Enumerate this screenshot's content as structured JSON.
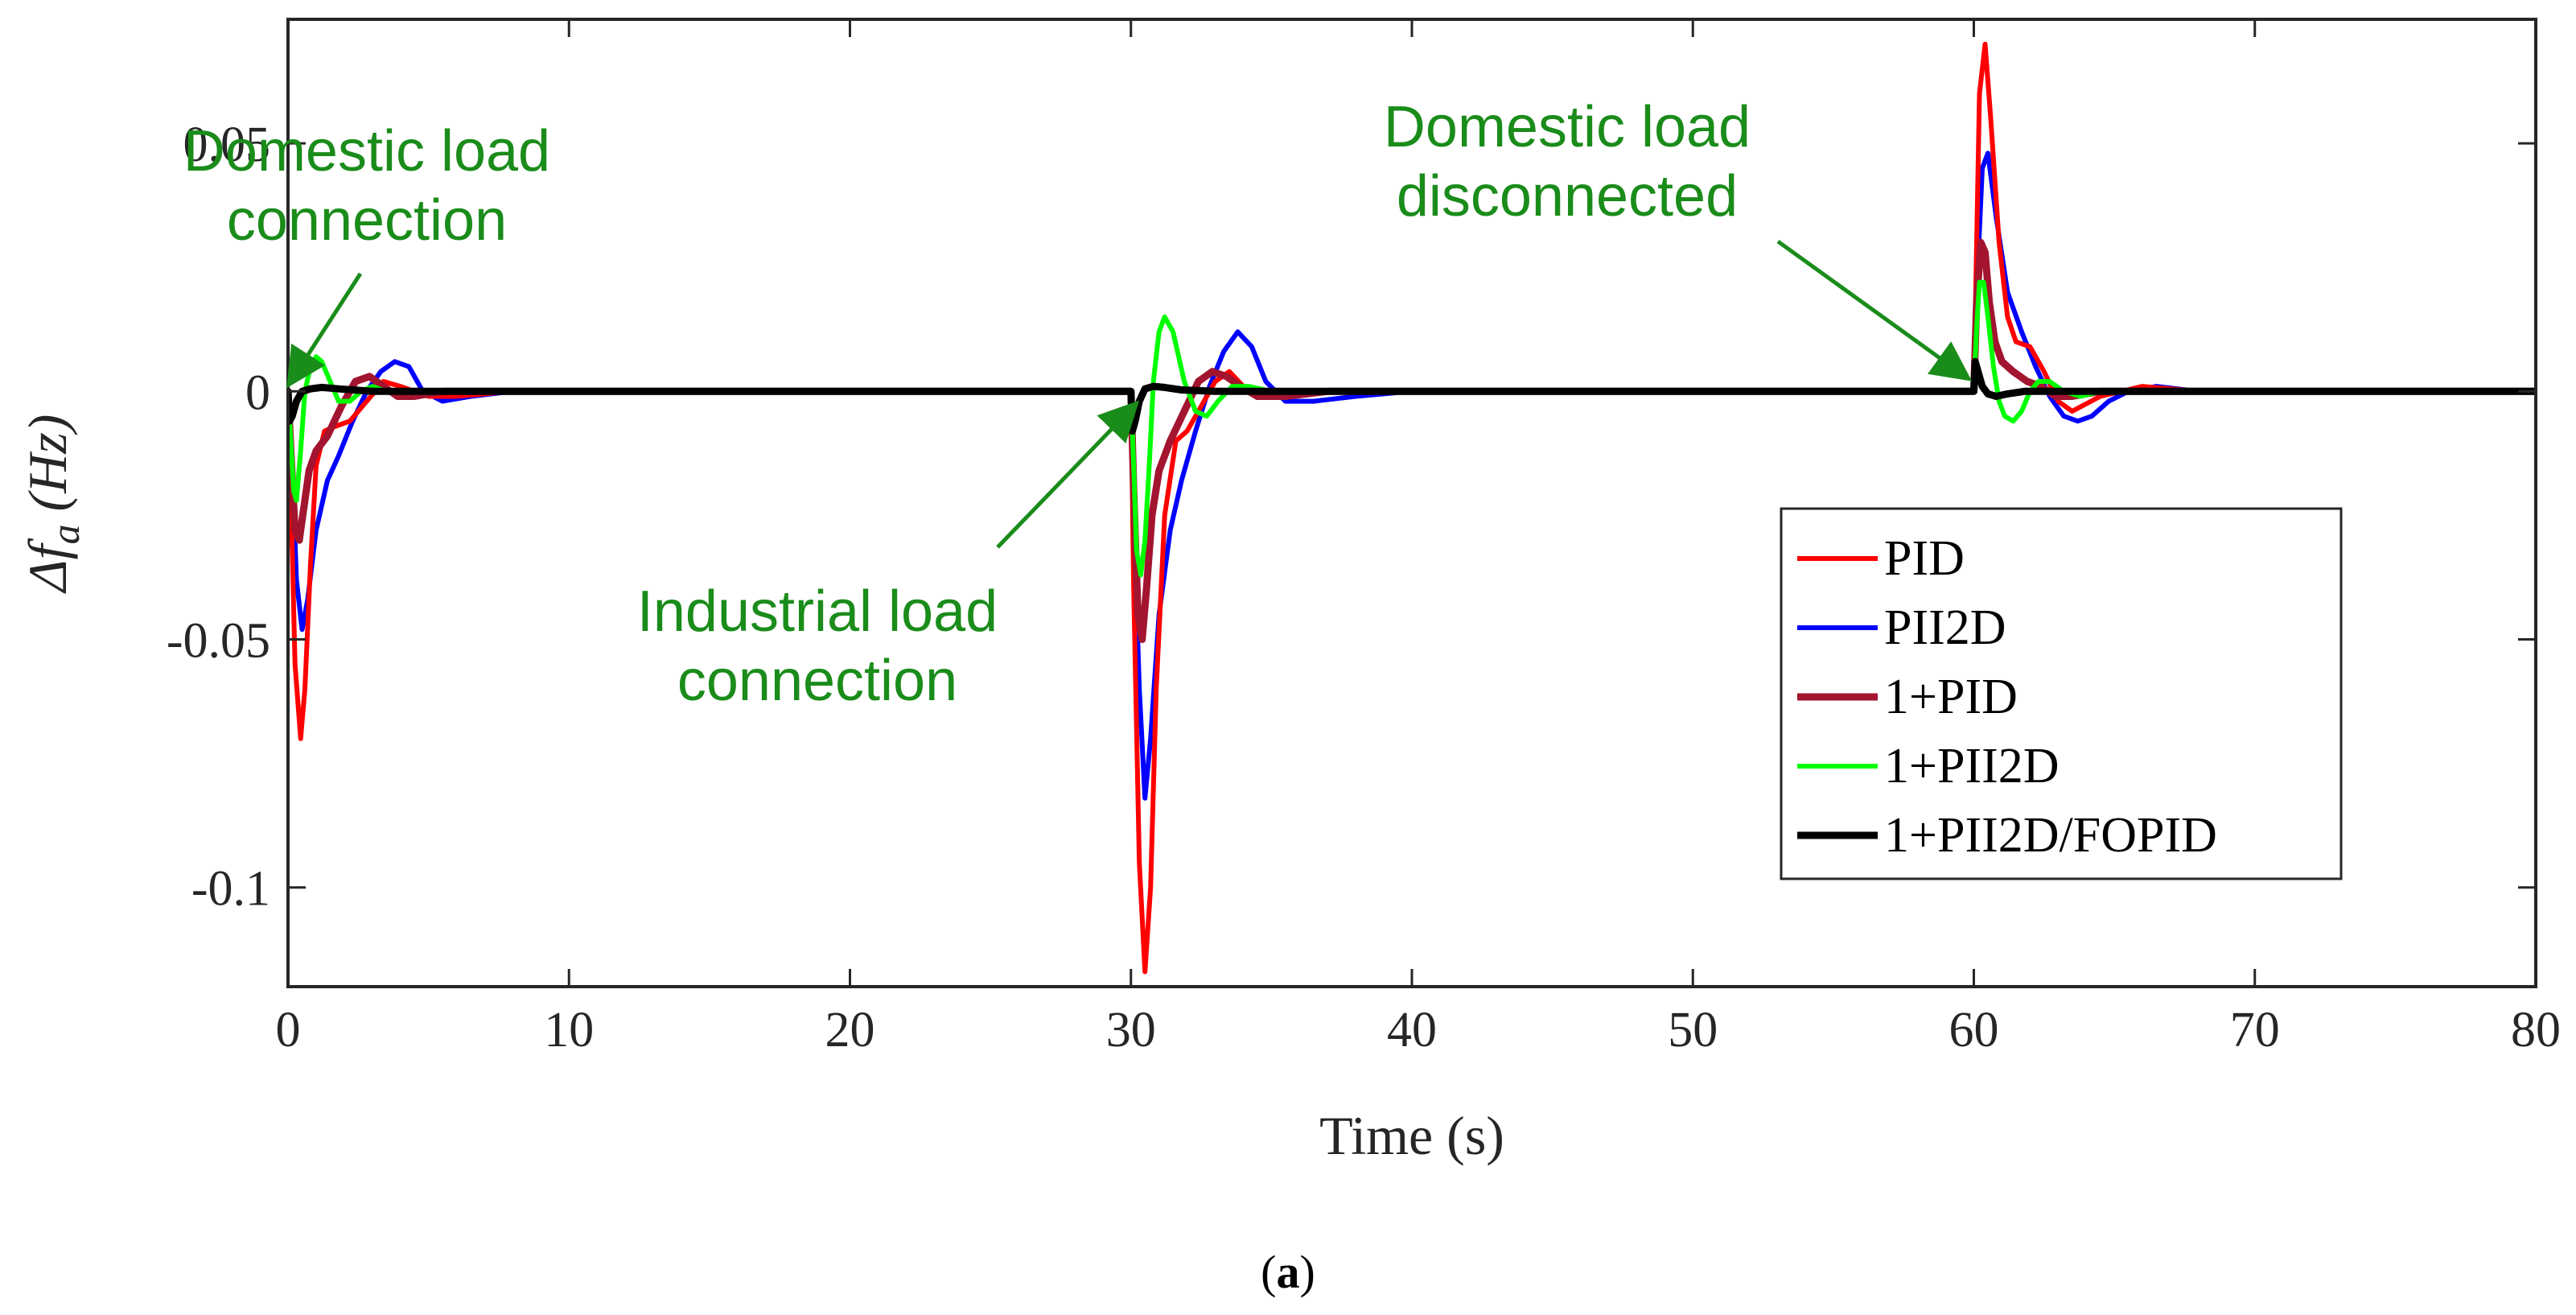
{
  "chart_data": {
    "type": "line",
    "title": "",
    "xlabel": "Time (s)",
    "ylabel": "Δf_a (Hz)",
    "ylabel_main": "Δf",
    "ylabel_sub": "a",
    "ylabel_unit": "(Hz)",
    "xlim": [
      0,
      80
    ],
    "ylim": [
      -0.12,
      0.075
    ],
    "x_ticks": [
      0,
      10,
      20,
      30,
      40,
      50,
      60,
      70,
      80
    ],
    "x_tick_labels": [
      "0",
      "10",
      "20",
      "30",
      "40",
      "50",
      "60",
      "70",
      "80"
    ],
    "y_ticks": [
      0.05,
      0,
      -0.05,
      -0.1
    ],
    "y_tick_labels": [
      "0.05",
      "0",
      "-0.05",
      "-0.1"
    ],
    "grid": false,
    "legend_position": "lower-right",
    "caption": "(a)",
    "caption_bold": "a",
    "series": [
      {
        "name": "PID",
        "color": "#ff0000",
        "thick": false,
        "x": [
          0,
          0.1,
          0.25,
          0.45,
          0.6,
          0.8,
          1.0,
          1.3,
          1.7,
          2.2,
          2.8,
          3.4,
          4.0,
          5.0,
          6.0,
          8.0,
          30.0,
          30.1,
          30.3,
          30.5,
          30.7,
          30.9,
          31.2,
          31.6,
          32.0,
          32.5,
          33.0,
          33.5,
          34.0,
          34.5,
          35.5,
          37.0,
          40.0,
          60.0,
          60.1,
          60.2,
          60.4,
          60.6,
          60.9,
          61.2,
          61.5,
          62.0,
          62.5,
          63.0,
          63.5,
          64.5,
          66.0,
          68.0,
          80.0
        ],
        "values": [
          0,
          -0.02,
          -0.055,
          -0.07,
          -0.06,
          -0.035,
          -0.015,
          -0.008,
          -0.007,
          -0.006,
          -0.002,
          0.002,
          0.001,
          -0.001,
          -0.001,
          0,
          0,
          -0.04,
          -0.095,
          -0.117,
          -0.1,
          -0.06,
          -0.025,
          -0.01,
          -0.008,
          -0.003,
          0.002,
          0.004,
          0.001,
          -0.001,
          -0.001,
          0,
          0,
          0,
          0.03,
          0.06,
          0.07,
          0.055,
          0.03,
          0.015,
          0.01,
          0.009,
          0.004,
          -0.002,
          -0.004,
          -0.001,
          0.001,
          0,
          0
        ]
      },
      {
        "name": "PII2D",
        "color": "#0000ff",
        "thick": false,
        "x": [
          0,
          0.15,
          0.3,
          0.5,
          0.7,
          1.0,
          1.4,
          1.8,
          2.3,
          2.8,
          3.3,
          3.8,
          4.3,
          4.8,
          5.5,
          6.5,
          8.0,
          30.0,
          30.1,
          30.3,
          30.5,
          30.7,
          31.0,
          31.4,
          31.8,
          32.3,
          32.8,
          33.3,
          33.8,
          34.3,
          34.8,
          35.5,
          36.5,
          38.0,
          40.0,
          60.0,
          60.1,
          60.3,
          60.5,
          60.8,
          61.2,
          61.7,
          62.2,
          62.7,
          63.2,
          63.7,
          64.2,
          64.8,
          65.5,
          66.5,
          68.0,
          80.0
        ],
        "values": [
          0,
          -0.015,
          -0.038,
          -0.048,
          -0.042,
          -0.028,
          -0.018,
          -0.013,
          -0.006,
          0,
          0.004,
          0.006,
          0.005,
          0,
          -0.002,
          -0.001,
          0,
          0,
          -0.025,
          -0.06,
          -0.082,
          -0.07,
          -0.045,
          -0.028,
          -0.018,
          -0.008,
          0.001,
          0.008,
          0.012,
          0.009,
          0.002,
          -0.002,
          -0.002,
          -0.001,
          0,
          0,
          0.02,
          0.045,
          0.048,
          0.035,
          0.02,
          0.012,
          0.005,
          -0.001,
          -0.005,
          -0.006,
          -0.005,
          -0.002,
          0,
          0.001,
          0,
          0
        ]
      },
      {
        "name": "1+PID",
        "color": "#a2142f",
        "thick": true,
        "x": [
          0,
          0.1,
          0.25,
          0.4,
          0.55,
          0.75,
          1.0,
          1.4,
          1.9,
          2.4,
          2.9,
          3.4,
          3.9,
          4.5,
          5.5,
          7.0,
          30.0,
          30.1,
          30.25,
          30.4,
          30.55,
          30.75,
          31.0,
          31.4,
          31.9,
          32.4,
          32.9,
          33.4,
          33.9,
          34.5,
          35.5,
          37.0,
          40.0,
          60.0,
          60.1,
          60.25,
          60.4,
          60.55,
          60.75,
          61.0,
          61.4,
          61.9,
          62.4,
          62.9,
          63.5,
          64.5,
          66.0,
          80.0
        ],
        "values": [
          0,
          -0.012,
          -0.028,
          -0.03,
          -0.024,
          -0.016,
          -0.012,
          -0.009,
          -0.003,
          0.002,
          0.003,
          0.001,
          -0.001,
          -0.001,
          0,
          0,
          0,
          -0.02,
          -0.045,
          -0.05,
          -0.04,
          -0.025,
          -0.016,
          -0.01,
          -0.004,
          0.002,
          0.004,
          0.003,
          0.001,
          -0.001,
          -0.001,
          0,
          0,
          0,
          0.018,
          0.03,
          0.028,
          0.018,
          0.01,
          0.006,
          0.004,
          0.002,
          0.001,
          -0.001,
          -0.001,
          0,
          0,
          0
        ]
      },
      {
        "name": "1+PII2D",
        "color": "#00ff00",
        "thick": false,
        "x": [
          0,
          0.1,
          0.2,
          0.3,
          0.45,
          0.6,
          0.8,
          1.0,
          1.2,
          1.5,
          1.8,
          2.2,
          2.6,
          3.0,
          3.5,
          4.0,
          5.0,
          6.0,
          8.0,
          30.0,
          30.1,
          30.2,
          30.35,
          30.5,
          30.65,
          30.8,
          31.0,
          31.2,
          31.5,
          31.9,
          32.3,
          32.7,
          33.1,
          33.6,
          34.2,
          35.0,
          36.0,
          38.0,
          60.0,
          60.1,
          60.2,
          60.35,
          60.5,
          60.7,
          60.9,
          61.1,
          61.4,
          61.7,
          62.0,
          62.3,
          62.7,
          63.2,
          63.8,
          64.5,
          66.0,
          80.0
        ],
        "values": [
          0,
          -0.01,
          -0.02,
          -0.022,
          -0.012,
          0,
          0.005,
          0.007,
          0.006,
          0.002,
          -0.002,
          -0.002,
          0,
          0.001,
          0,
          0,
          0,
          0,
          0,
          0,
          -0.015,
          -0.032,
          -0.037,
          -0.03,
          -0.015,
          0.002,
          0.012,
          0.015,
          0.012,
          0.002,
          -0.004,
          -0.005,
          -0.002,
          0.001,
          0.001,
          0,
          0,
          0,
          0,
          0.013,
          0.022,
          0.022,
          0.015,
          0.005,
          -0.002,
          -0.005,
          -0.006,
          -0.004,
          0,
          0.002,
          0.002,
          0,
          -0.001,
          0,
          0,
          0
        ]
      },
      {
        "name": "1+PII2D/FOPID",
        "color": "#000000",
        "thick": true,
        "x": [
          0,
          0.05,
          0.15,
          0.3,
          0.5,
          0.8,
          1.2,
          1.8,
          3.0,
          80.0,
          30.0,
          30.05,
          30.15,
          30.3,
          30.5,
          30.8,
          31.2,
          31.8,
          33.0,
          60.0,
          60.05,
          60.15,
          60.3,
          60.5,
          60.8,
          61.2,
          61.8,
          63.0
        ],
        "values": [
          0,
          -0.006,
          -0.005,
          -0.002,
          0,
          0.0005,
          0.0008,
          0.0005,
          0,
          0,
          0,
          -0.008,
          -0.006,
          -0.002,
          0.0005,
          0.001,
          0.0008,
          0.0003,
          0,
          0,
          0.006,
          0.004,
          0.001,
          -0.0005,
          -0.001,
          -0.0005,
          0,
          0
        ]
      }
    ],
    "annotations": [
      {
        "lines": [
          "Domestic load",
          "connection"
        ],
        "color": "#1a8c1a",
        "arrow_to": [
          0.1,
          0.002
        ]
      },
      {
        "lines": [
          "Industrial load",
          "connection"
        ],
        "color": "#1a8c1a",
        "arrow_to": [
          30.1,
          -0.003
        ]
      },
      {
        "lines": [
          "Domestic load",
          "disconnected"
        ],
        "color": "#1a8c1a",
        "arrow_to": [
          59.7,
          0.003
        ]
      }
    ]
  }
}
